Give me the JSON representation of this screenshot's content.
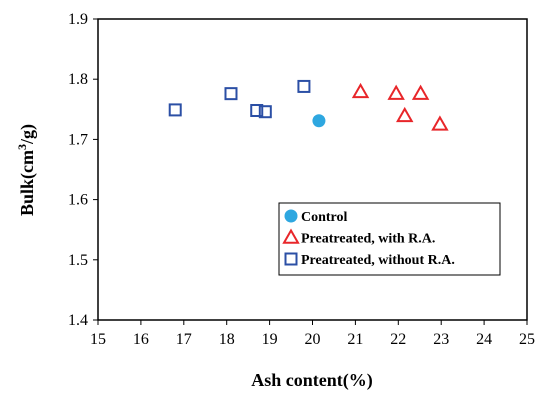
{
  "chart_data": {
    "type": "scatter",
    "title": "",
    "xlabel": "Ash content(%)",
    "ylabel_main": "Bulk(cm",
    "ylabel_sup": "3",
    "ylabel_end": "/g)",
    "xlim": [
      15,
      25
    ],
    "ylim": [
      1.4,
      1.9
    ],
    "xticks": [
      "15",
      "16",
      "17",
      "18",
      "19",
      "20",
      "21",
      "22",
      "23",
      "24",
      "25"
    ],
    "yticks": [
      "1.4",
      "1.5",
      "1.6",
      "1.7",
      "1.8",
      "1.9"
    ],
    "grid": false,
    "legend_position": "bottom-right",
    "series": [
      {
        "name": "Control",
        "marker": "circle",
        "color": "#2ea7e0",
        "points": [
          [
            20.15,
            1.731
          ]
        ]
      },
      {
        "name": "Preatreated, with R.A.",
        "marker": "triangle",
        "color": "#e8262a",
        "points": [
          [
            21.12,
            1.779
          ],
          [
            21.95,
            1.776
          ],
          [
            22.15,
            1.739
          ],
          [
            22.52,
            1.776
          ],
          [
            22.97,
            1.725
          ]
        ]
      },
      {
        "name": "Preatreated, without R.A.",
        "marker": "square",
        "color": "#2b4fa5",
        "points": [
          [
            16.8,
            1.749
          ],
          [
            18.1,
            1.776
          ],
          [
            18.7,
            1.748
          ],
          [
            18.9,
            1.746
          ],
          [
            19.8,
            1.788
          ]
        ]
      }
    ]
  }
}
